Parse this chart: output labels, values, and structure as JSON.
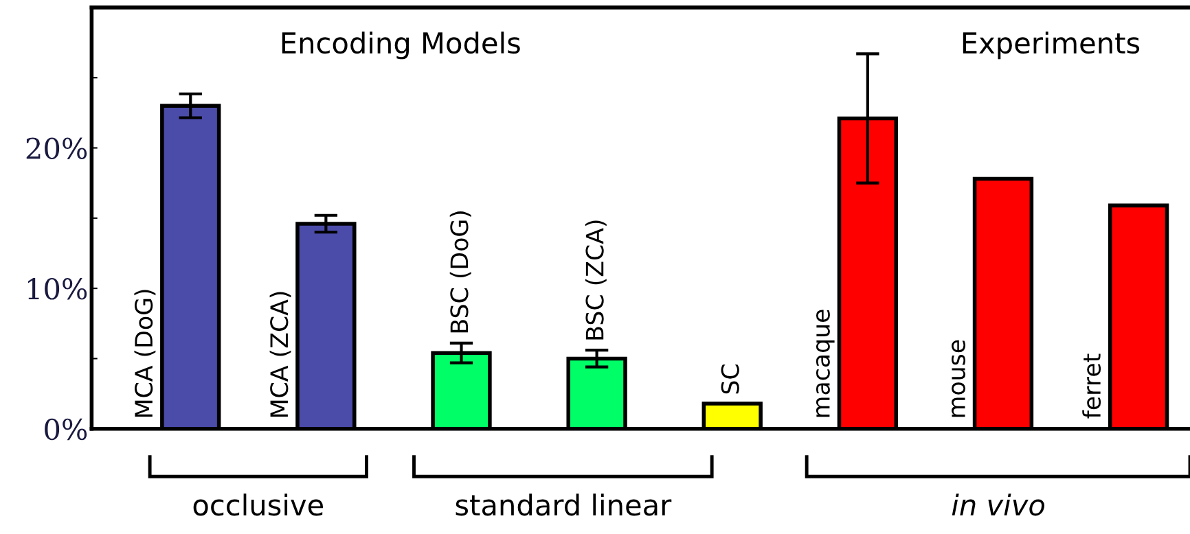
{
  "chart_data": {
    "type": "bar",
    "categories": [
      "MCA (DoG)",
      "MCA (ZCA)",
      "BSC (DoG)",
      "BSC (ZCA)",
      "SC",
      "macaque",
      "mouse",
      "ferret"
    ],
    "values": [
      23.0,
      14.6,
      5.4,
      5.0,
      1.8,
      22.1,
      17.8,
      15.9
    ],
    "colors": [
      "#4b4baa",
      "#4b4baa",
      "#00ff66",
      "#00ff66",
      "#ffff00",
      "#ff0000",
      "#ff0000",
      "#ff0000"
    ],
    "errors": [
      0.85,
      0.6,
      0.7,
      0.6,
      null,
      4.6,
      null,
      null
    ],
    "ylim": [
      0,
      30
    ],
    "yticks": [
      {
        "value": 0,
        "label": "0%"
      },
      {
        "value": 5,
        "label": null
      },
      {
        "value": 10,
        "label": "10%"
      },
      {
        "value": 15,
        "label": null
      },
      {
        "value": 20,
        "label": "20%"
      },
      {
        "value": 25,
        "label": null
      }
    ],
    "tick_labels": "y",
    "grid": false,
    "annotations": [
      "Encoding Models",
      "Experiments",
      "occlusive",
      "standard linear",
      "in vivo"
    ]
  }
}
